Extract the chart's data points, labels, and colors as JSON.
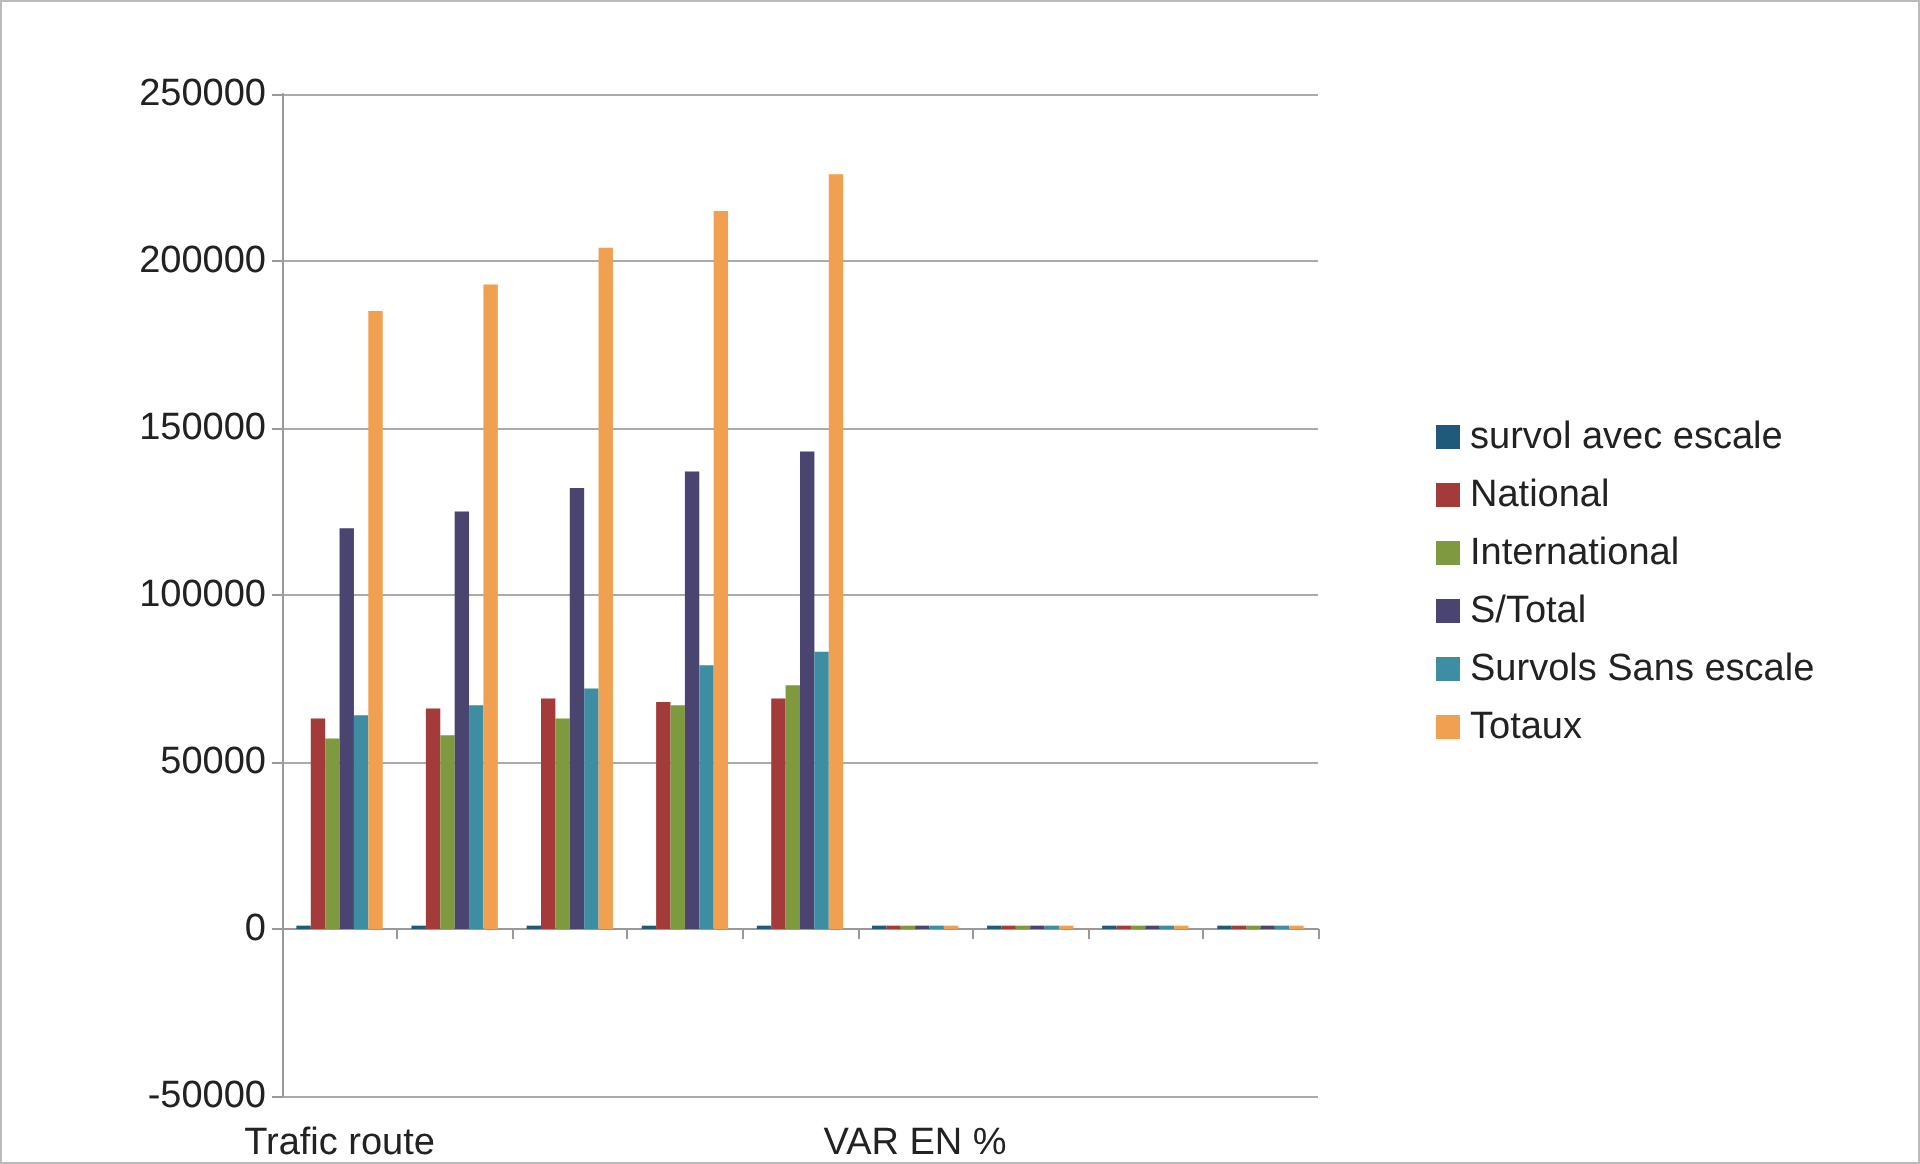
{
  "chart_data": {
    "type": "bar",
    "categories": [
      "Trafic route",
      null,
      null,
      null,
      null,
      "VAR EN %",
      null,
      null,
      null
    ],
    "series": [
      {
        "name": "survol avec escale",
        "color": "#1f5a7a",
        "values": [
          1000,
          1000,
          1000,
          1000,
          1000,
          1000,
          1000,
          1000,
          1000
        ]
      },
      {
        "name": "National",
        "color": "#a33b3b",
        "values": [
          63000,
          66000,
          69000,
          68000,
          69000,
          1000,
          1000,
          1000,
          1000
        ]
      },
      {
        "name": "International",
        "color": "#7f9a3e",
        "values": [
          57000,
          58000,
          63000,
          67000,
          73000,
          1000,
          1000,
          1000,
          1000
        ]
      },
      {
        "name": "S/Total",
        "color": "#4a4470",
        "values": [
          120000,
          125000,
          132000,
          137000,
          143000,
          1000,
          1000,
          1000,
          1000
        ]
      },
      {
        "name": "Survols Sans escale",
        "color": "#3d8ea3",
        "values": [
          64000,
          67000,
          72000,
          79000,
          83000,
          1000,
          1000,
          1000,
          1000
        ]
      },
      {
        "name": "Totaux",
        "color": "#f0a050",
        "values": [
          185000,
          193000,
          204000,
          215000,
          226000,
          1000,
          1000,
          1000,
          1000
        ]
      }
    ],
    "ylim": [
      -50000,
      250000
    ],
    "yticks": [
      -50000,
      0,
      50000,
      100000,
      150000,
      200000,
      250000
    ],
    "grid": "y",
    "legend": "right"
  }
}
